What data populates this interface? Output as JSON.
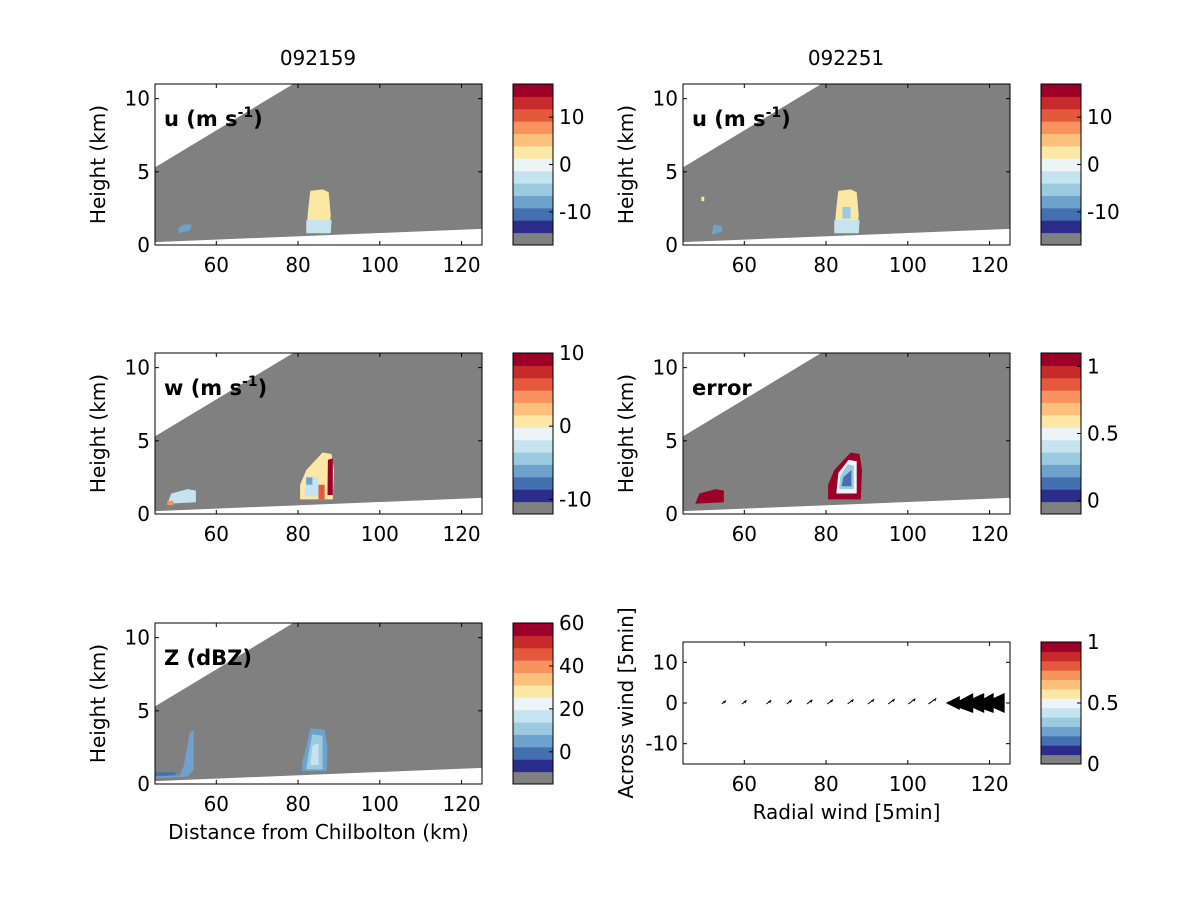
{
  "column_titles": [
    "092159",
    "092251"
  ],
  "chart_data": [
    {
      "type": "heatmap",
      "column_title": "092159",
      "panel_label": "u (m s",
      "panel_label_sup": "-1",
      "panel_label_close": ")",
      "xlabel": "",
      "ylabel": "Height (km)",
      "xlim": [
        45,
        125
      ],
      "ylim": [
        0,
        11
      ],
      "x_ticks": [
        60,
        80,
        100,
        120
      ],
      "y_ticks": [
        0,
        5,
        10
      ],
      "colorbar": {
        "ticks": [
          10,
          0,
          -10
        ],
        "range": [
          -17,
          17
        ]
      },
      "features": [
        "cloud near 52 km, u about -5 m/s",
        "cloud at 83-87 km from 0.5 to 3.5 km height, u about 0 to +3 m/s"
      ]
    },
    {
      "type": "heatmap",
      "column_title": "092251",
      "panel_label": "u (m s",
      "panel_label_sup": "-1",
      "panel_label_close": ")",
      "xlabel": "",
      "ylabel": "Height (km)",
      "xlim": [
        45,
        125
      ],
      "ylim": [
        0,
        11
      ],
      "x_ticks": [
        60,
        80,
        100,
        120
      ],
      "y_ticks": [
        0,
        5,
        10
      ],
      "colorbar": {
        "ticks": [
          10,
          0,
          -10
        ],
        "range": [
          -17,
          17
        ]
      },
      "features": [
        "cloud near 52 km, u about -5 m/s",
        "cloud at 83-87 km from 0.5 to 3.5 km height, u about 0 to +3 m/s"
      ]
    },
    {
      "type": "heatmap",
      "column_title": "092159",
      "panel_label": "w (m s",
      "panel_label_sup": "-1",
      "panel_label_close": ")",
      "xlabel": "",
      "ylabel": "Height (km)",
      "xlim": [
        45,
        125
      ],
      "ylim": [
        0,
        11
      ],
      "x_ticks": [
        60,
        80,
        100,
        120
      ],
      "y_ticks": [
        0,
        5,
        10
      ],
      "colorbar": {
        "ticks": [
          10,
          0,
          -10
        ],
        "range": [
          -12,
          10
        ]
      },
      "features": [
        "cloud at 48-55 km near 1 km height, w near 0",
        "cloud at 80-88 km up to 4 km, w from -10 to +10 m/s"
      ]
    },
    {
      "type": "heatmap",
      "column_title": "092251",
      "panel_label": "error",
      "panel_label_sup": "",
      "panel_label_close": "",
      "xlabel": "",
      "ylabel": "Height (km)",
      "xlim": [
        45,
        125
      ],
      "ylim": [
        0,
        11
      ],
      "x_ticks": [
        60,
        80,
        100,
        120
      ],
      "y_ticks": [
        0,
        5,
        10
      ],
      "colorbar": {
        "ticks": [
          1,
          0.5,
          0
        ],
        "range": [
          -0.1,
          1.1
        ]
      },
      "features": [
        "cloud at 48-55 km error about 1",
        "cloud at 80-88 km, error 1 at edges and about 0.1 in core"
      ]
    },
    {
      "type": "heatmap",
      "column_title": "092159",
      "panel_label": "Z (dBZ)",
      "panel_label_sup": "",
      "panel_label_close": "",
      "xlabel": "Distance from Chilbolton (km)",
      "ylabel": "Height (km)",
      "xlim": [
        45,
        125
      ],
      "ylim": [
        0,
        11
      ],
      "x_ticks": [
        60,
        80,
        100,
        120
      ],
      "y_ticks": [
        0,
        5,
        10
      ],
      "colorbar": {
        "ticks": [
          60,
          40,
          20,
          0
        ],
        "range": [
          -15,
          60
        ]
      },
      "features": [
        "echo at 45-55 km from -5 to 10 dBZ",
        "echo at 81-87 km up to 3.5 km, 0 to 25 dBZ"
      ]
    },
    {
      "type": "scatter",
      "column_title": "092251",
      "panel_label": "",
      "xlabel": "Radial wind [5min]",
      "ylabel": "Across wind [5min]",
      "xlim": [
        45,
        125
      ],
      "ylim": [
        -15,
        15
      ],
      "x_ticks": [
        60,
        80,
        100,
        120
      ],
      "y_ticks": [
        10,
        0,
        -10
      ],
      "colorbar": {
        "ticks": [
          1,
          0.5,
          0
        ],
        "range": [
          0,
          1
        ]
      },
      "quiver": {
        "x": [
          55,
          60,
          66,
          71,
          76,
          81,
          86,
          91,
          96,
          101,
          106,
          111,
          116,
          121
        ],
        "y": [
          0,
          0,
          0,
          0,
          0,
          0,
          0,
          0,
          0,
          0,
          0,
          0,
          0,
          0
        ],
        "length_scale": [
          0.4,
          0.5,
          0.6,
          0.7,
          0.8,
          0.9,
          1.0,
          1.1,
          1.2,
          1.4,
          1.6,
          2.0,
          3.5,
          4.0
        ]
      }
    }
  ],
  "colors": {
    "missing": "#808080",
    "colormap": [
      "#2c2c8c",
      "#4470b0",
      "#6ea2cc",
      "#9ccae0",
      "#c6e4ef",
      "#ecf4f8",
      "#fde7a5",
      "#fdc07a",
      "#f8925e",
      "#e4583e",
      "#c62a2a",
      "#9c0028"
    ]
  }
}
